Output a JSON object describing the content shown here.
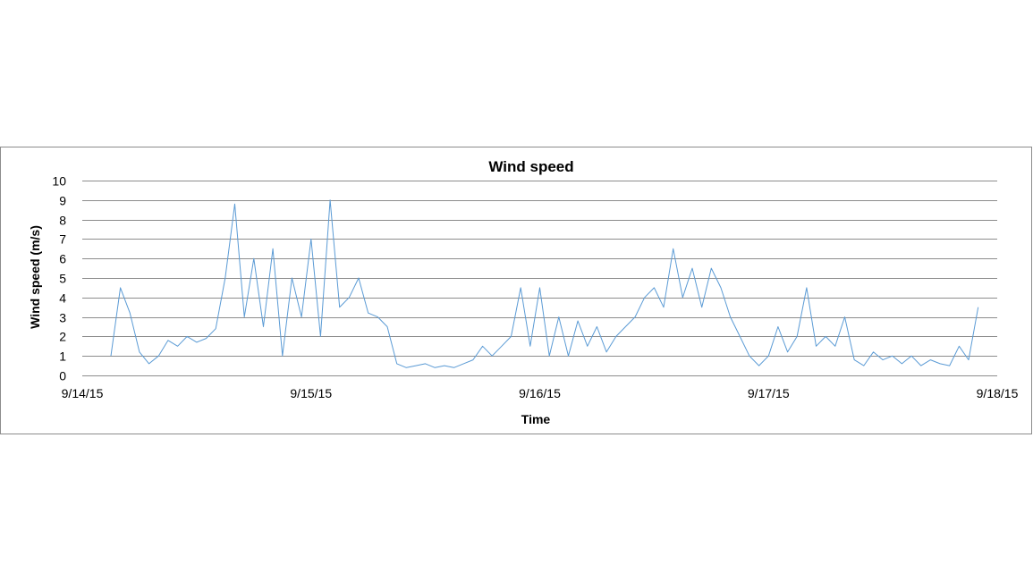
{
  "chart_data": {
    "type": "line",
    "title": "Wind speed",
    "xlabel": "Time",
    "ylabel": "Wind speed (m/s)",
    "xlim": [
      "9/14/15",
      "9/18/15"
    ],
    "ylim": [
      0,
      10
    ],
    "y_ticks": [
      0,
      1,
      2,
      3,
      4,
      5,
      6,
      7,
      8,
      9,
      10
    ],
    "x_tick_labels": [
      "9/14/15",
      "9/15/15",
      "9/16/15",
      "9/17/15",
      "9/18/15"
    ],
    "grid": true,
    "legend": "none",
    "color": "#5b9bd5",
    "series": [
      {
        "x": [
          "9/14/15 03:00",
          "9/14/15 04:00",
          "9/14/15 05:00",
          "9/14/15 06:00",
          "9/14/15 07:00",
          "9/14/15 08:00",
          "9/14/15 09:00",
          "9/14/15 10:00",
          "9/14/15 11:00",
          "9/14/15 12:00",
          "9/14/15 13:00",
          "9/14/15 14:00",
          "9/14/15 15:00",
          "9/14/15 16:00",
          "9/14/15 17:00",
          "9/14/15 18:00",
          "9/14/15 19:00",
          "9/14/15 20:00",
          "9/14/15 21:00",
          "9/14/15 22:00",
          "9/14/15 23:00",
          "9/15/15 00:00",
          "9/15/15 01:00",
          "9/15/15 02:00",
          "9/15/15 03:00",
          "9/15/15 04:00",
          "9/15/15 05:00",
          "9/15/15 06:00",
          "9/15/15 07:00",
          "9/15/15 08:00",
          "9/15/15 09:00",
          "9/15/15 10:00",
          "9/15/15 11:00",
          "9/15/15 12:00",
          "9/15/15 13:00",
          "9/15/15 14:00",
          "9/15/15 15:00",
          "9/15/15 16:00",
          "9/15/15 17:00",
          "9/15/15 18:00",
          "9/15/15 19:00",
          "9/15/15 20:00",
          "9/15/15 21:00",
          "9/15/15 22:00",
          "9/15/15 23:00",
          "9/16/15 00:00",
          "9/16/15 01:00",
          "9/16/15 02:00",
          "9/16/15 03:00",
          "9/16/15 04:00",
          "9/16/15 05:00",
          "9/16/15 06:00",
          "9/16/15 07:00",
          "9/16/15 08:00",
          "9/16/15 09:00",
          "9/16/15 10:00",
          "9/16/15 11:00",
          "9/16/15 12:00",
          "9/16/15 13:00",
          "9/16/15 14:00",
          "9/16/15 15:00",
          "9/16/15 16:00",
          "9/16/15 17:00",
          "9/16/15 18:00",
          "9/16/15 19:00",
          "9/16/15 20:00",
          "9/16/15 21:00",
          "9/16/15 22:00",
          "9/16/15 23:00",
          "9/17/15 00:00",
          "9/17/15 01:00",
          "9/17/15 02:00",
          "9/17/15 03:00",
          "9/17/15 04:00",
          "9/17/15 05:00",
          "9/17/15 06:00",
          "9/17/15 07:00",
          "9/17/15 08:00",
          "9/17/15 09:00",
          "9/17/15 10:00",
          "9/17/15 11:00",
          "9/17/15 12:00",
          "9/17/15 13:00",
          "9/17/15 14:00",
          "9/17/15 15:00",
          "9/17/15 16:00",
          "9/17/15 17:00",
          "9/17/15 18:00",
          "9/17/15 19:00",
          "9/17/15 20:00",
          "9/17/15 21:00",
          "9/17/15 22:00"
        ],
        "values": [
          1.0,
          4.5,
          3.2,
          1.2,
          0.6,
          1.0,
          1.8,
          1.5,
          2.0,
          1.7,
          1.9,
          2.4,
          5.0,
          8.8,
          3.0,
          6.0,
          2.5,
          6.5,
          1.0,
          5.0,
          3.0,
          7.0,
          2.0,
          9.0,
          3.5,
          4.0,
          5.0,
          3.2,
          3.0,
          2.5,
          0.6,
          0.4,
          0.5,
          0.6,
          0.4,
          0.5,
          0.4,
          0.6,
          0.8,
          1.5,
          1.0,
          1.5,
          2.0,
          4.5,
          1.5,
          4.5,
          1.0,
          3.0,
          1.0,
          2.8,
          1.5,
          2.5,
          1.2,
          2.0,
          2.5,
          3.0,
          4.0,
          4.5,
          3.5,
          6.5,
          4.0,
          5.5,
          3.5,
          5.5,
          4.5,
          3.0,
          2.0,
          1.0,
          0.5,
          1.0,
          2.5,
          1.2,
          2.0,
          4.5,
          1.5,
          2.0,
          1.5,
          3.0,
          0.8,
          0.5,
          1.2,
          0.8,
          1.0,
          0.6,
          1.0,
          0.5,
          0.8,
          0.6,
          0.5,
          1.5,
          0.8,
          3.5
        ]
      }
    ]
  }
}
